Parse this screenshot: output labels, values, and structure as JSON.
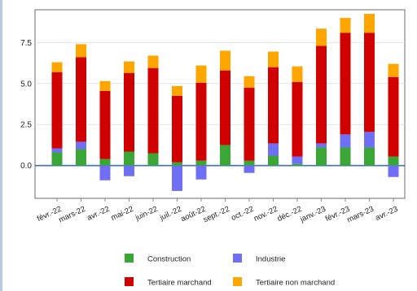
{
  "chart_data": {
    "type": "bar",
    "stacked": true,
    "categories": [
      "févr.-22",
      "mars-22",
      "avr.-22",
      "mai-22",
      "juin-22",
      "juil.-22",
      "août-22",
      "sept.-22",
      "oct.-22",
      "nov.-22",
      "déc.-22",
      "janv.-23",
      "févr.-23",
      "mars-23",
      "avr.-23"
    ],
    "series": [
      {
        "name": "Construction",
        "color": "#3aa635",
        "values": [
          0.8,
          1.0,
          0.4,
          0.85,
          0.75,
          0.2,
          0.3,
          1.25,
          0.3,
          0.6,
          0.1,
          1.1,
          1.1,
          1.1,
          0.55
        ]
      },
      {
        "name": "Industrie",
        "color": "#6f6ff5",
        "values": [
          0.25,
          0.45,
          -0.9,
          -0.65,
          0.0,
          -1.55,
          -0.85,
          0.0,
          -0.45,
          0.75,
          0.45,
          0.25,
          0.8,
          0.95,
          -0.7
        ]
      },
      {
        "name": "Tertiaire marchand",
        "color": "#d10000",
        "values": [
          4.65,
          5.15,
          4.15,
          4.8,
          5.2,
          4.05,
          4.75,
          4.55,
          4.45,
          4.65,
          4.55,
          5.95,
          6.2,
          6.05,
          4.85
        ]
      },
      {
        "name": "Tertiaire non marchand",
        "color": "#ffa500",
        "values": [
          0.6,
          0.8,
          0.6,
          0.7,
          0.75,
          0.6,
          1.05,
          1.2,
          0.7,
          0.95,
          0.95,
          1.05,
          0.9,
          1.15,
          0.8
        ]
      }
    ],
    "yticks": [
      "0.0",
      "2.5",
      "5.0",
      "7.5"
    ],
    "ylim": [
      -2.0,
      9.5
    ],
    "legend_position": "bottom",
    "grid": "horizontal"
  }
}
